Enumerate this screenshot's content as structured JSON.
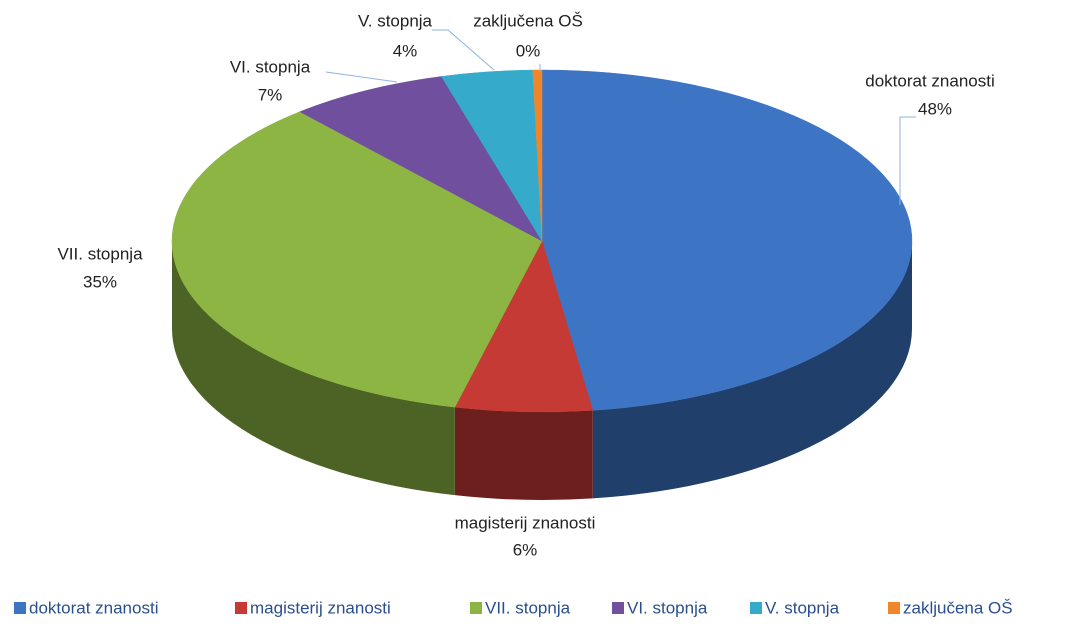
{
  "chart_data": {
    "type": "pie",
    "categories": [
      "doktorat znanosti",
      "magisterij znanosti",
      "VII. stopnja",
      "VI. stopnja",
      "V. stopnja",
      "zaključena OŠ"
    ],
    "values": [
      48,
      6,
      35,
      7,
      4,
      0.4
    ],
    "value_labels": [
      "48%",
      "6%",
      "35%",
      "7%",
      "4%",
      "0%"
    ],
    "colors": [
      "#3d74c4",
      "#c63a36",
      "#8cb544",
      "#6f4f9e",
      "#36aacb",
      "#f0862a"
    ],
    "legend": "bottom"
  }
}
